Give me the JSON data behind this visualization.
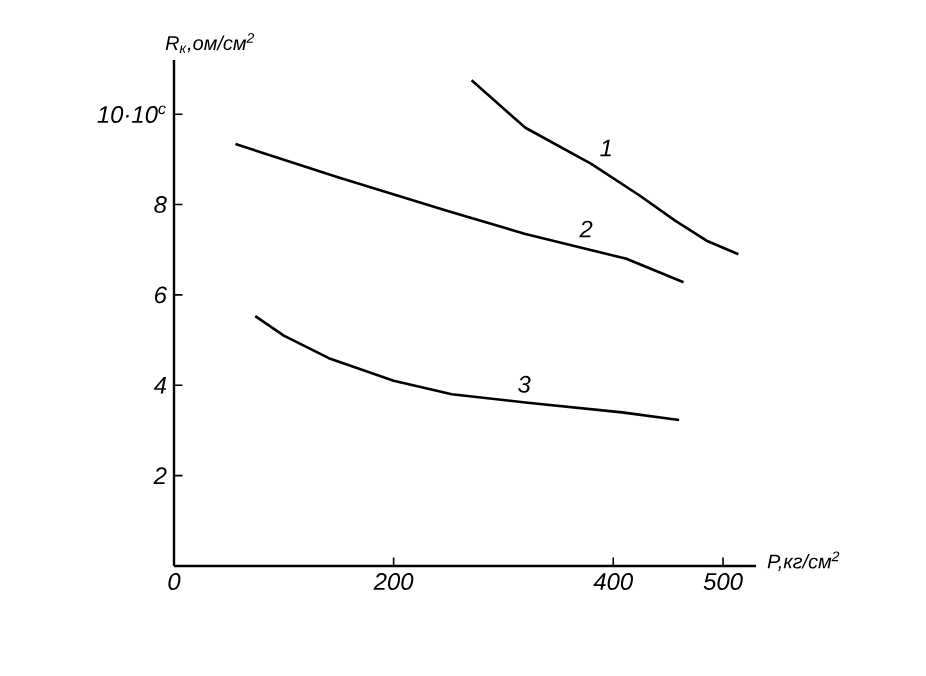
{
  "chart_data": {
    "type": "line",
    "xlabel": "P,кг/см$^{2}$",
    "ylabel": "R$_{к}$,ом/см$^{2}$",
    "xlim": [
      0,
      530
    ],
    "ylim": [
      0,
      11.2
    ],
    "xticks": [
      0,
      200,
      400,
      500
    ],
    "yticks": [
      2,
      4,
      6,
      8,
      {
        "value": 10,
        "label": "10·10$^{c}$"
      }
    ],
    "series": [
      {
        "name": "1",
        "color": "#000000",
        "x": [
          271,
          320,
          380,
          424,
          456,
          485,
          514
        ],
        "values": [
          10.75,
          9.7,
          8.9,
          8.2,
          7.65,
          7.2,
          6.9
        ]
      },
      {
        "name": "2",
        "color": "#000000",
        "x": [
          56,
          150,
          250,
          320,
          412,
          464
        ],
        "values": [
          9.34,
          8.6,
          7.85,
          7.35,
          6.8,
          6.28
        ]
      },
      {
        "name": "3",
        "color": "#000000",
        "x": [
          74,
          100,
          141,
          200,
          253,
          320,
          408,
          460
        ],
        "values": [
          5.53,
          5.1,
          4.6,
          4.1,
          3.8,
          3.62,
          3.4,
          3.23
        ]
      }
    ],
    "grid": false,
    "marker": "none",
    "line_style": "solid"
  }
}
